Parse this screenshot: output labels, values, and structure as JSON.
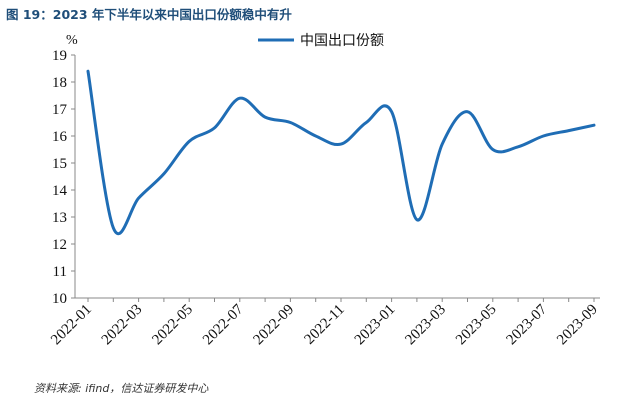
{
  "title": "图 19：2023 年下半年以来中国出口份额稳中有升",
  "source": "资料来源: ifind，信达证券研发中心",
  "chart_data": {
    "type": "line",
    "title": "图 19：2023 年下半年以来中国出口份额稳中有升",
    "ylabel": "%",
    "ylim": [
      10,
      19
    ],
    "yticks": [
      10,
      11,
      12,
      13,
      14,
      15,
      16,
      17,
      18,
      19
    ],
    "xticklabels": [
      "2022-01",
      "2022-03",
      "2022-05",
      "2022-07",
      "2022-09",
      "2022-11",
      "2023-01",
      "2023-03",
      "2023-05",
      "2023-07",
      "2023-09"
    ],
    "x": [
      "2022-01",
      "2022-02",
      "2022-03",
      "2022-04",
      "2022-05",
      "2022-06",
      "2022-07",
      "2022-08",
      "2022-09",
      "2022-10",
      "2022-11",
      "2022-12",
      "2023-01",
      "2023-02",
      "2023-03",
      "2023-04",
      "2023-05",
      "2023-06",
      "2023-07",
      "2023-08",
      "2023-09"
    ],
    "grid": false,
    "legend_position": "top",
    "series": [
      {
        "name": "中国出口份额",
        "color": "#1f6db5",
        "values": [
          18.4,
          12.6,
          13.7,
          14.6,
          15.8,
          16.3,
          17.4,
          16.7,
          16.5,
          16.0,
          15.7,
          16.5,
          16.9,
          12.9,
          15.7,
          16.9,
          15.5,
          15.6,
          16.0,
          16.2,
          16.4
        ]
      }
    ]
  }
}
